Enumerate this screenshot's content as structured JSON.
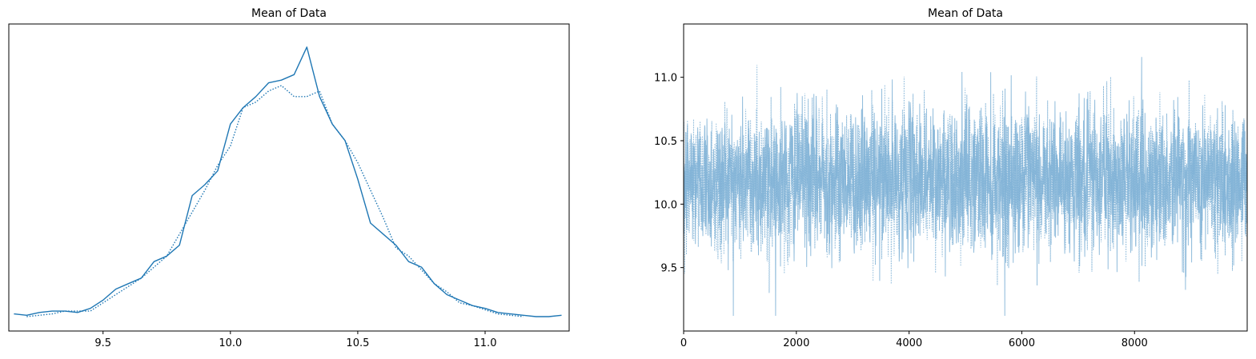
{
  "chart_data": [
    {
      "type": "line",
      "title": "Mean of Data",
      "xlabel": "",
      "ylabel": "",
      "xlim": [
        9.13,
        11.33
      ],
      "ylim": [
        0,
        1.0
      ],
      "xticks": [
        "9.5",
        "10.0",
        "10.5",
        "11.0"
      ],
      "yticks": [],
      "grid": false,
      "color": "#1f77b4",
      "series": [
        {
          "style": "solid",
          "x": [
            9.15,
            9.2,
            9.25,
            9.3,
            9.35,
            9.4,
            9.45,
            9.5,
            9.55,
            9.6,
            9.65,
            9.7,
            9.75,
            9.8,
            9.85,
            9.9,
            9.95,
            10.0,
            10.05,
            10.1,
            10.15,
            10.2,
            10.25,
            10.3,
            10.35,
            10.4,
            10.45,
            10.5,
            10.55,
            10.6,
            10.65,
            10.7,
            10.75,
            10.8,
            10.85,
            10.9,
            10.95,
            11.0,
            11.05,
            11.1,
            11.15,
            11.2,
            11.25,
            11.3
          ],
          "y": [
            0.01,
            0.005,
            0.015,
            0.02,
            0.02,
            0.015,
            0.03,
            0.06,
            0.1,
            0.12,
            0.14,
            0.2,
            0.22,
            0.26,
            0.44,
            0.48,
            0.53,
            0.7,
            0.76,
            0.8,
            0.85,
            0.86,
            0.88,
            0.98,
            0.8,
            0.7,
            0.64,
            0.5,
            0.34,
            0.3,
            0.26,
            0.2,
            0.18,
            0.12,
            0.08,
            0.06,
            0.04,
            0.03,
            0.015,
            0.01,
            0.005,
            0.0,
            0.0,
            0.005
          ]
        },
        {
          "style": "dotted",
          "x": [
            9.2,
            9.25,
            9.3,
            9.35,
            9.4,
            9.45,
            9.5,
            9.55,
            9.6,
            9.65,
            9.7,
            9.75,
            9.8,
            9.85,
            9.9,
            9.95,
            10.0,
            10.05,
            10.1,
            10.15,
            10.2,
            10.25,
            10.3,
            10.35,
            10.4,
            10.45,
            10.5,
            10.55,
            10.6,
            10.65,
            10.7,
            10.75,
            10.8,
            10.85,
            10.9,
            10.95,
            11.0,
            11.05,
            11.1,
            11.15
          ],
          "y": [
            0.0,
            0.005,
            0.01,
            0.02,
            0.02,
            0.02,
            0.05,
            0.08,
            0.11,
            0.14,
            0.18,
            0.22,
            0.3,
            0.38,
            0.46,
            0.55,
            0.62,
            0.76,
            0.78,
            0.82,
            0.84,
            0.8,
            0.8,
            0.82,
            0.7,
            0.64,
            0.56,
            0.46,
            0.36,
            0.25,
            0.22,
            0.17,
            0.12,
            0.09,
            0.05,
            0.04,
            0.025,
            0.01,
            0.005,
            0.0
          ]
        }
      ]
    },
    {
      "type": "line",
      "title": "Mean of Data",
      "xlabel": "",
      "ylabel": "",
      "xlim": [
        0,
        9999
      ],
      "ylim": [
        9.0,
        11.42
      ],
      "xticks": [
        "0",
        "2000",
        "4000",
        "6000",
        "8000"
      ],
      "yticks": [
        "9.5",
        "10.0",
        "10.5",
        "11.0"
      ],
      "grid": false,
      "color": "#7fb2d6",
      "trace_summary": {
        "draws": 10000,
        "chains": 2,
        "center": 10.2,
        "spread": 0.28,
        "min": 9.12,
        "max": 11.3
      },
      "series": [
        {
          "style": "solid"
        },
        {
          "style": "dotted"
        }
      ]
    }
  ]
}
